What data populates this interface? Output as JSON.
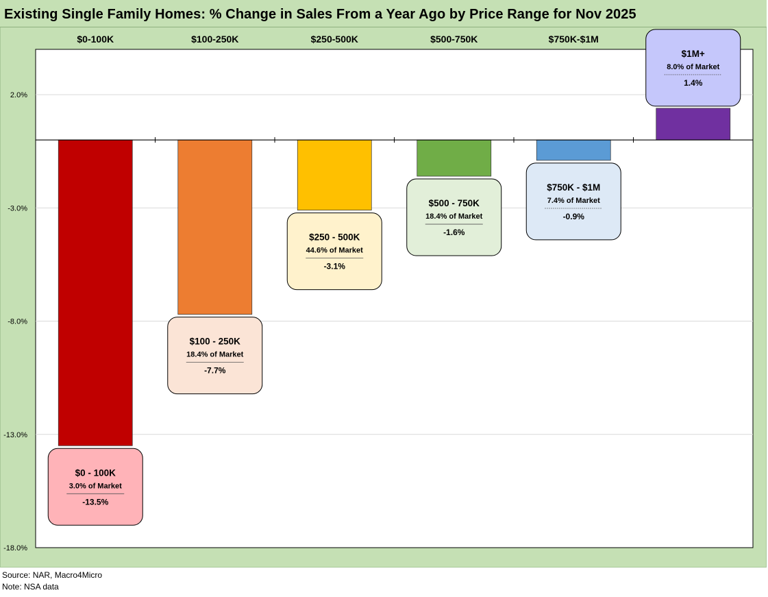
{
  "title": "Existing Single Family Homes: % Change in Sales From a Year Ago by Price Range for Nov 2025",
  "chart_data": {
    "type": "bar",
    "categories": [
      "$0-100K",
      "$100-250K",
      "$250-500K",
      "$500-750K",
      "$750K-$1M",
      "$1M+"
    ],
    "values": [
      -13.5,
      -7.7,
      -3.1,
      -1.6,
      -0.9,
      1.4
    ],
    "colors": [
      "#c00000",
      "#ed7d31",
      "#ffc000",
      "#70ad47",
      "#5b9bd5",
      "#7030a0"
    ],
    "ylim": [
      -18.0,
      4.0
    ],
    "yticks": [
      2.0,
      -3.0,
      -8.0,
      -13.0,
      -18.0
    ],
    "ytick_labels": [
      "2.0%",
      "-3.0%",
      "-8.0%",
      "-13.0%",
      "-18.0%"
    ],
    "grid": true,
    "annotations": [
      {
        "title": "$0 - 100K",
        "share": "3.0% of Market",
        "value": "-13.5%",
        "fill": "#ffb3b8"
      },
      {
        "title": "$100 - 250K",
        "share": "18.4% of Market",
        "value": "-7.7%",
        "fill": "#fbe4d6"
      },
      {
        "title": "$250 - 500K",
        "share": "44.6% of Market",
        "value": "-3.1%",
        "fill": "#fff2cc"
      },
      {
        "title": "$500 - 750K",
        "share": "18.4% of Market",
        "value": "-1.6%",
        "fill": "#e2efd9"
      },
      {
        "title": "$750K - $1M",
        "share": "7.4% of Market",
        "value": "-0.9%",
        "fill": "#dde9f6"
      },
      {
        "title": "$1M+",
        "share": "8.0% of Market",
        "value": "1.4%",
        "fill": "#c5c7fb"
      }
    ]
  },
  "footer": {
    "source": "Source: NAR, Macro4Micro",
    "note": "Note: NSA data"
  }
}
